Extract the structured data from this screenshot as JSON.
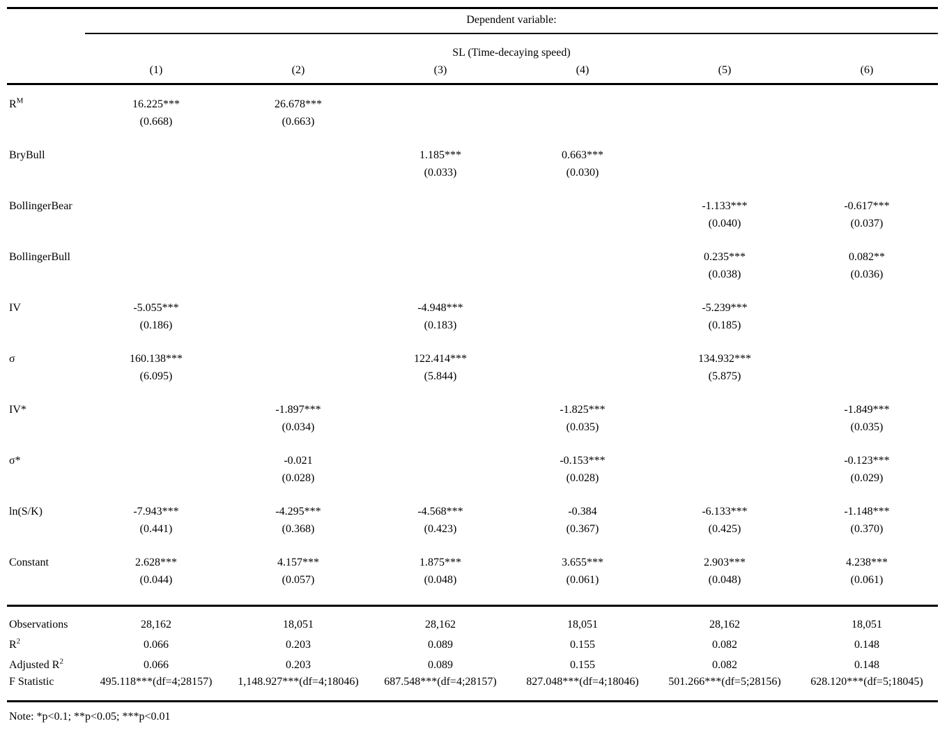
{
  "header": {
    "dependent_variable_label": "Dependent variable:",
    "dependent_variable_name": "SL (Time-decaying speed)",
    "column_numbers": [
      "(1)",
      "(2)",
      "(3)",
      "(4)",
      "(5)",
      "(6)"
    ]
  },
  "coefficients": [
    {
      "label": "R",
      "label_sup": "M",
      "cells": [
        {
          "coef": "16.225***",
          "se": "(0.668)"
        },
        {
          "coef": "26.678***",
          "se": "(0.663)"
        },
        null,
        null,
        null,
        null
      ]
    },
    {
      "label": "BryBull",
      "label_sup": "",
      "cells": [
        null,
        null,
        {
          "coef": "1.185***",
          "se": "(0.033)"
        },
        {
          "coef": "0.663***",
          "se": "(0.030)"
        },
        null,
        null
      ]
    },
    {
      "label": "BollingerBear",
      "label_sup": "",
      "cells": [
        null,
        null,
        null,
        null,
        {
          "coef": "-1.133***",
          "se": "(0.040)"
        },
        {
          "coef": "-0.617***",
          "se": "(0.037)"
        }
      ]
    },
    {
      "label": "BollingerBull",
      "label_sup": "",
      "cells": [
        null,
        null,
        null,
        null,
        {
          "coef": "0.235***",
          "se": "(0.038)"
        },
        {
          "coef": "0.082**",
          "se": "(0.036)"
        }
      ]
    },
    {
      "label": "IV",
      "label_sup": "",
      "cells": [
        {
          "coef": "-5.055***",
          "se": "(0.186)"
        },
        null,
        {
          "coef": "-4.948***",
          "se": "(0.183)"
        },
        null,
        {
          "coef": "-5.239***",
          "se": "(0.185)"
        },
        null
      ]
    },
    {
      "label": "σ",
      "label_sup": "",
      "cells": [
        {
          "coef": "160.138***",
          "se": "(6.095)"
        },
        null,
        {
          "coef": "122.414***",
          "se": "(5.844)"
        },
        null,
        {
          "coef": "134.932***",
          "se": "(5.875)"
        },
        null
      ]
    },
    {
      "label": "IV*",
      "label_sup": "",
      "cells": [
        null,
        {
          "coef": "-1.897***",
          "se": "(0.034)"
        },
        null,
        {
          "coef": "-1.825***",
          "se": "(0.035)"
        },
        null,
        {
          "coef": "-1.849***",
          "se": "(0.035)"
        }
      ]
    },
    {
      "label": "σ*",
      "label_sup": "",
      "cells": [
        null,
        {
          "coef": "-0.021",
          "se": "(0.028)"
        },
        null,
        {
          "coef": "-0.153***",
          "se": "(0.028)"
        },
        null,
        {
          "coef": "-0.123***",
          "se": "(0.029)"
        }
      ]
    },
    {
      "label": "ln(S/K)",
      "label_sup": "",
      "cells": [
        {
          "coef": "-7.943***",
          "se": "(0.441)"
        },
        {
          "coef": "-4.295***",
          "se": "(0.368)"
        },
        {
          "coef": "-4.568***",
          "se": "(0.423)"
        },
        {
          "coef": "-0.384",
          "se": "(0.367)"
        },
        {
          "coef": "-6.133***",
          "se": "(0.425)"
        },
        {
          "coef": "-1.148***",
          "se": "(0.370)"
        }
      ]
    },
    {
      "label": "Constant",
      "label_sup": "",
      "cells": [
        {
          "coef": "2.628***",
          "se": "(0.044)"
        },
        {
          "coef": "4.157***",
          "se": "(0.057)"
        },
        {
          "coef": "1.875***",
          "se": "(0.048)"
        },
        {
          "coef": "3.655***",
          "se": "(0.061)"
        },
        {
          "coef": "2.903***",
          "se": "(0.048)"
        },
        {
          "coef": "4.238***",
          "se": "(0.061)"
        }
      ]
    }
  ],
  "stats": [
    {
      "label": "Observations",
      "label_sup": "",
      "values": [
        "28,162",
        "18,051",
        "28,162",
        "18,051",
        "28,162",
        "18,051"
      ]
    },
    {
      "label": "R",
      "label_sup": "2",
      "values": [
        "0.066",
        "0.203",
        "0.089",
        "0.155",
        "0.082",
        "0.148"
      ]
    },
    {
      "label": "Adjusted R",
      "label_sup": "2",
      "values": [
        "0.066",
        "0.203",
        "0.089",
        "0.155",
        "0.082",
        "0.148"
      ]
    },
    {
      "label": "F Statistic",
      "label_sup": "",
      "values": [
        "495.118***(df=4;28157)",
        "1,148.927***(df=4;18046)",
        "687.548***(df=4;28157)",
        "827.048***(df=4;18046)",
        "501.266***(df=5;28156)",
        "628.120***(df=5;18045)"
      ]
    }
  ],
  "note": "Note: *p<0.1; **p<0.05; ***p<0.01"
}
